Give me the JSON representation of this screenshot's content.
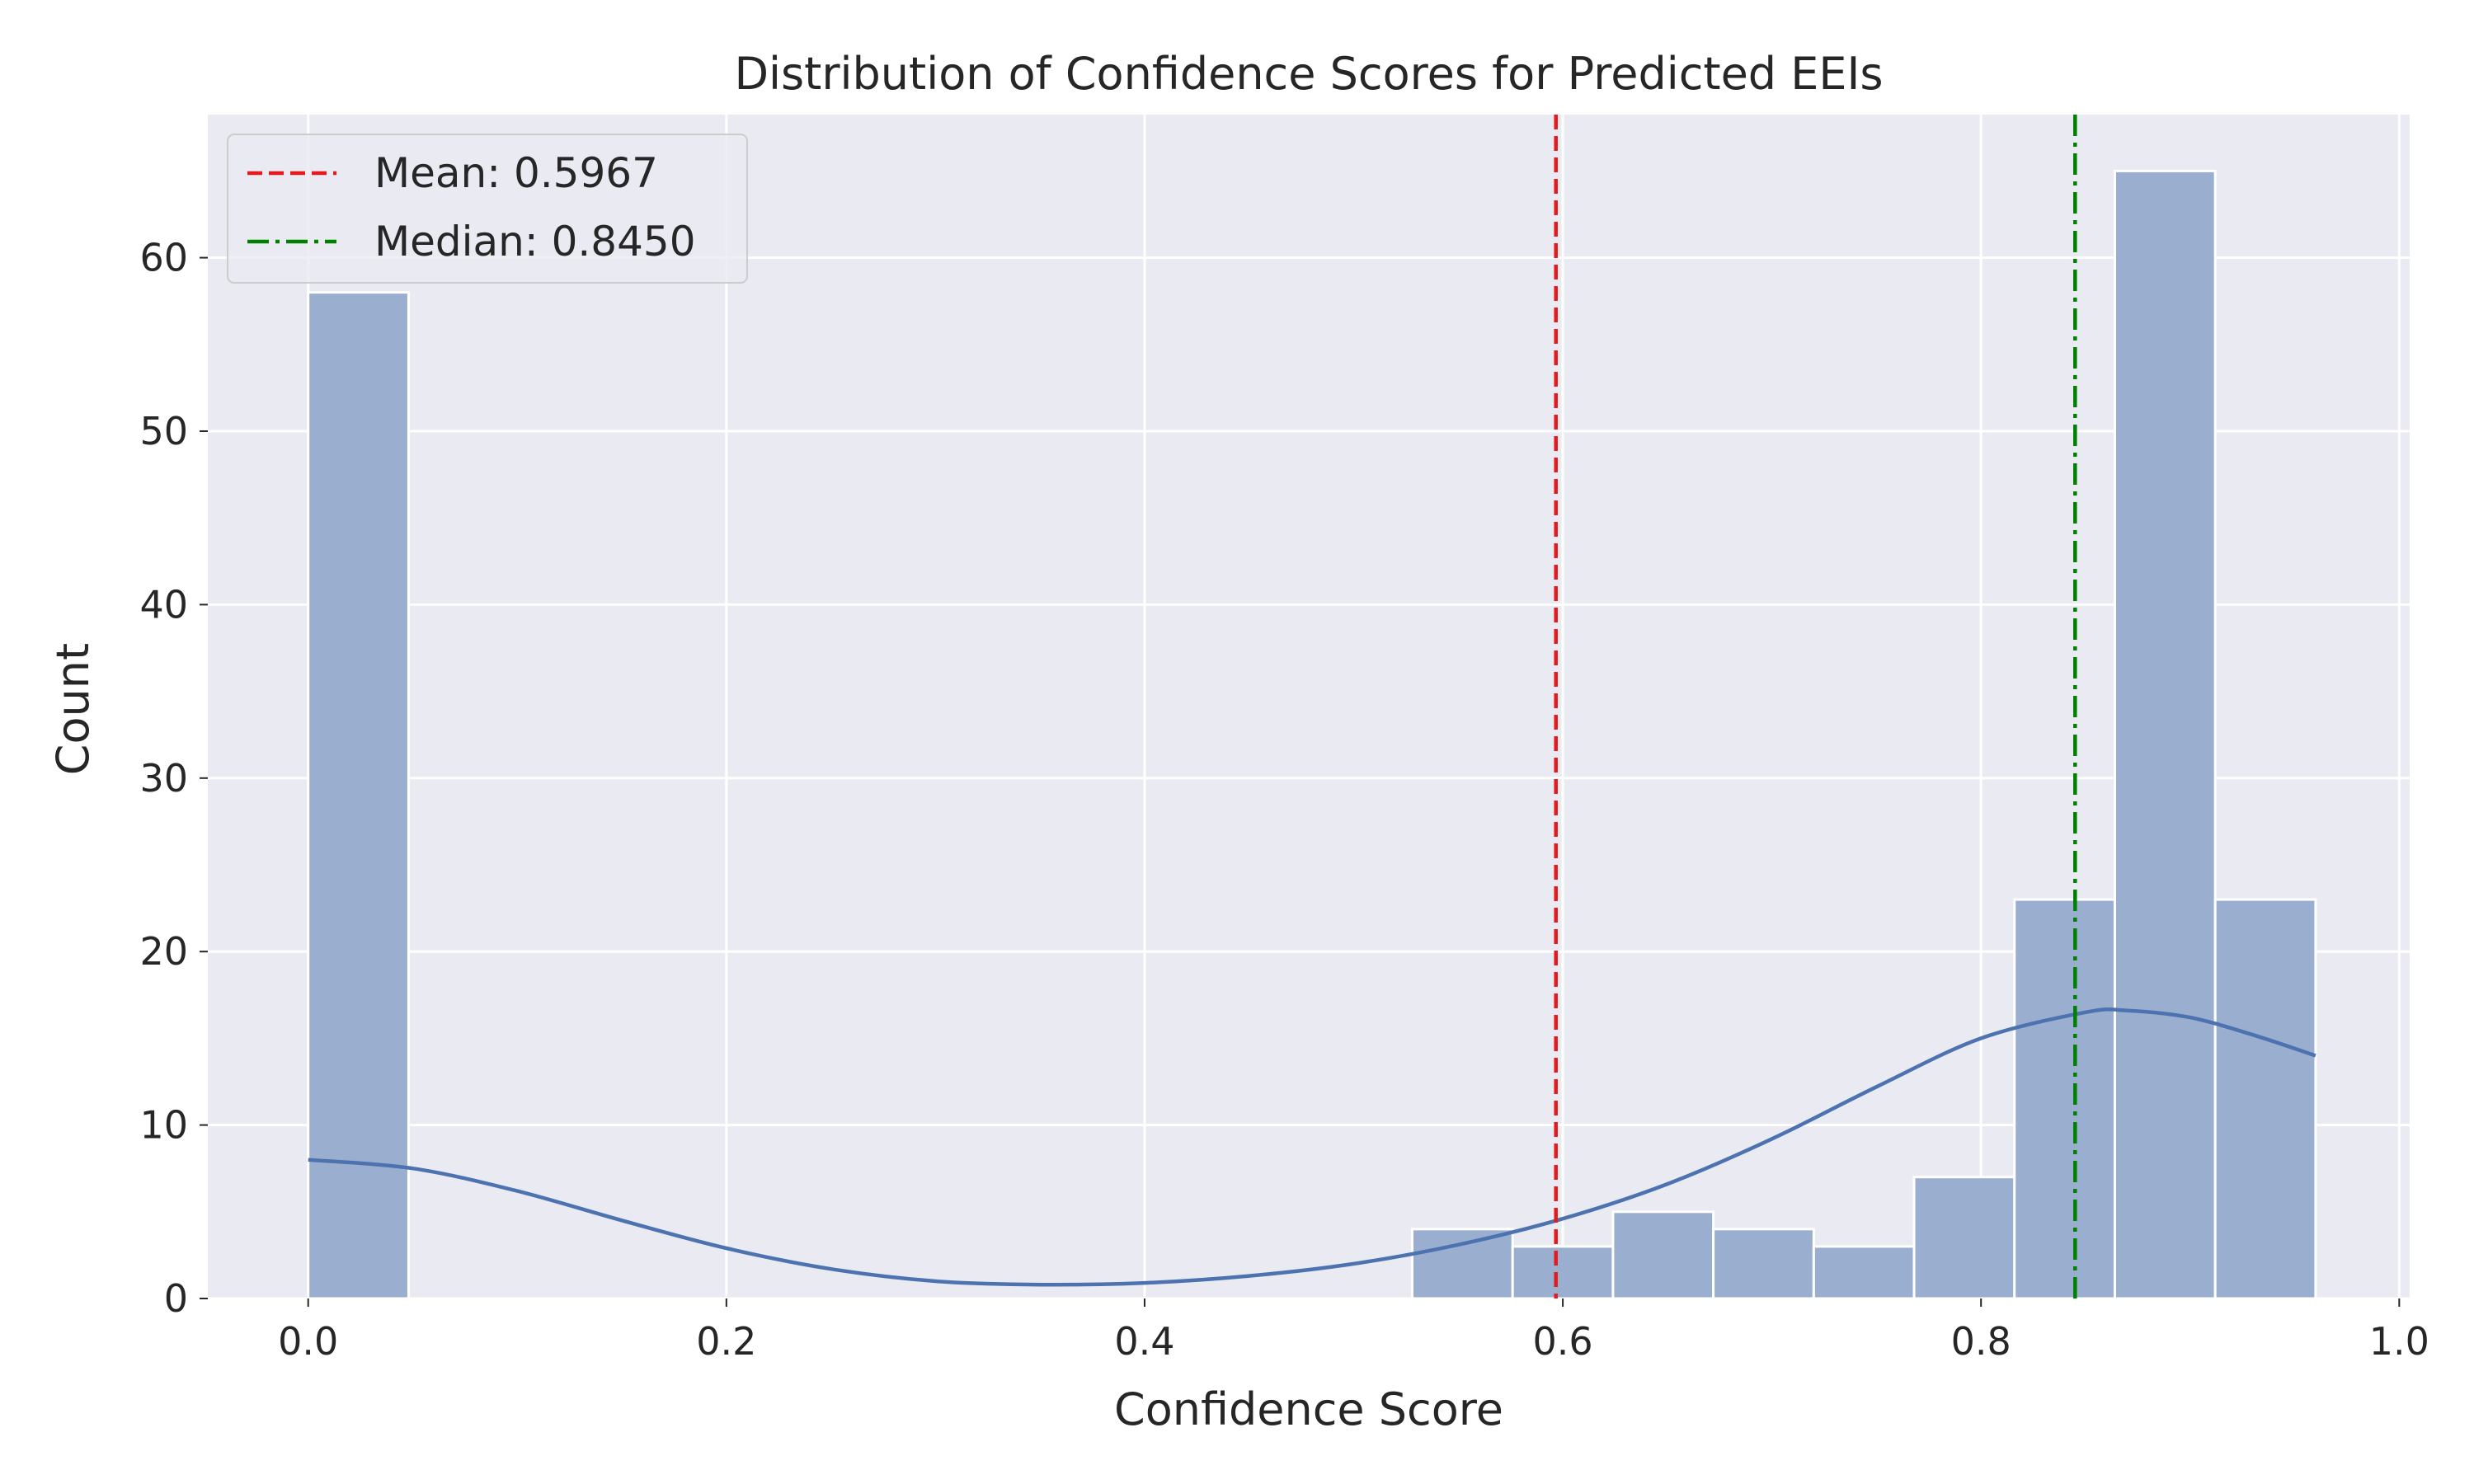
{
  "chart_data": {
    "type": "bar",
    "title": "Distribution of Confidence Scores for Predicted EEIs",
    "xlabel": "Confidence Score",
    "ylabel": "Count",
    "xlim": [
      -0.048,
      1.005
    ],
    "ylim": [
      0,
      68.25
    ],
    "xticks": [
      0.0,
      0.2,
      0.4,
      0.6,
      0.8,
      1.0
    ],
    "xtick_labels": [
      "0.0",
      "0.2",
      "0.4",
      "0.6",
      "0.8",
      "1.0"
    ],
    "yticks": [
      0,
      10,
      20,
      30,
      40,
      50,
      60
    ],
    "ytick_labels": [
      "0",
      "10",
      "20",
      "30",
      "40",
      "50",
      "60"
    ],
    "grid": true,
    "bins": [
      {
        "x0": 0.0,
        "x1": 0.048,
        "count": 58
      },
      {
        "x0": 0.528,
        "x1": 0.576,
        "count": 4
      },
      {
        "x0": 0.576,
        "x1": 0.624,
        "count": 3
      },
      {
        "x0": 0.624,
        "x1": 0.672,
        "count": 5
      },
      {
        "x0": 0.672,
        "x1": 0.72,
        "count": 4
      },
      {
        "x0": 0.72,
        "x1": 0.768,
        "count": 3
      },
      {
        "x0": 0.768,
        "x1": 0.816,
        "count": 7
      },
      {
        "x0": 0.816,
        "x1": 0.864,
        "count": 23
      },
      {
        "x0": 0.864,
        "x1": 0.912,
        "count": 65
      },
      {
        "x0": 0.912,
        "x1": 0.96,
        "count": 23
      }
    ],
    "kde": {
      "x": [
        0.0,
        0.05,
        0.1,
        0.15,
        0.2,
        0.25,
        0.3,
        0.35,
        0.4,
        0.45,
        0.5,
        0.55,
        0.6,
        0.65,
        0.7,
        0.75,
        0.8,
        0.85,
        0.87,
        0.9,
        0.93,
        0.96
      ],
      "y": [
        8.0,
        7.5,
        6.2,
        4.5,
        2.9,
        1.7,
        1.0,
        0.8,
        0.9,
        1.3,
        2.0,
        3.1,
        4.6,
        6.6,
        9.2,
        12.2,
        15.0,
        16.5,
        16.6,
        16.2,
        15.2,
        14.0
      ],
      "color": "#4c72b0"
    },
    "bar_color": "#9aaed0",
    "lines": [
      {
        "label": "Mean: 0.5967",
        "x": 0.5967,
        "color": "#e41a1c",
        "style": "dashed"
      },
      {
        "label": "Median: 0.8450",
        "x": 0.845,
        "color": "#008000",
        "style": "dashdot"
      }
    ],
    "legend": {
      "position": "top-left"
    }
  }
}
